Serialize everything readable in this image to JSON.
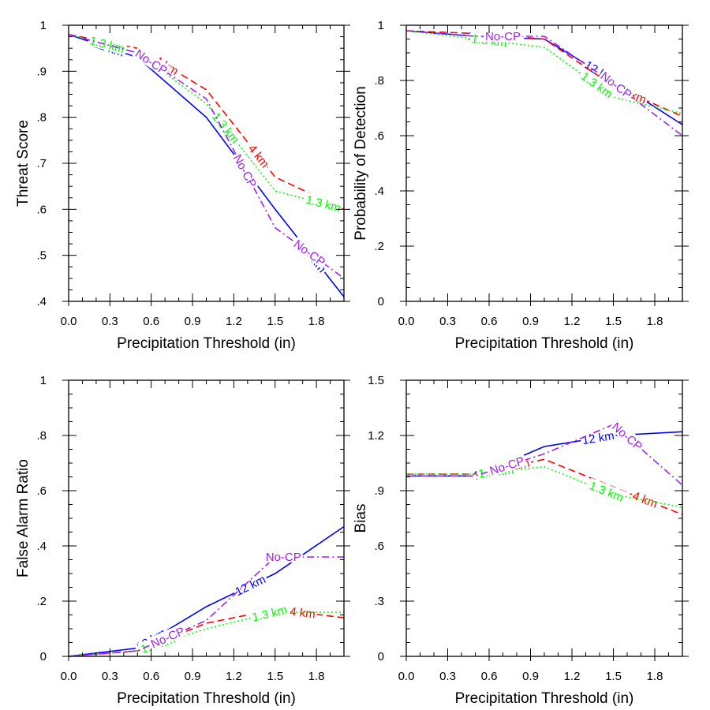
{
  "chart_data": [
    {
      "type": "line",
      "title": "",
      "xlabel": "Precipitation Threshold (in)",
      "ylabel": "Threat Score",
      "xlim": [
        0,
        2.0
      ],
      "ylim": [
        0.4,
        1.0
      ],
      "x_ticks": [
        "0.0",
        "0.3",
        "0.6",
        "0.9",
        "1.2",
        "1.5",
        "1.8"
      ],
      "x_tick_values": [
        0,
        0.3,
        0.6,
        0.9,
        1.2,
        1.5,
        1.8
      ],
      "y_ticks": [
        ".4",
        ".5",
        ".6",
        ".7",
        ".8",
        ".9",
        "1"
      ],
      "y_tick_values": [
        0.4,
        0.5,
        0.6,
        0.7,
        0.8,
        0.9,
        1.0
      ],
      "grid": false,
      "x": [
        0,
        0.5,
        1.0,
        1.5,
        2.0
      ],
      "series": [
        {
          "name": "12 km",
          "color": "#0000ff",
          "style": "solid",
          "values": [
            0.98,
            0.93,
            0.8,
            0.6,
            0.41
          ]
        },
        {
          "name": "4 km",
          "color": "#ff0000",
          "style": "dashed",
          "values": [
            0.98,
            0.95,
            0.86,
            0.67,
            0.6
          ]
        },
        {
          "name": "1.3 km",
          "color": "#00ff00",
          "style": "dotted",
          "values": [
            0.98,
            0.94,
            0.83,
            0.64,
            0.6
          ]
        },
        {
          "name": "No-CP",
          "color": "#a020f0",
          "style": "dashdot",
          "values": [
            0.98,
            0.94,
            0.84,
            0.56,
            0.45
          ]
        }
      ]
    },
    {
      "type": "line",
      "title": "",
      "xlabel": "Precipitation Threshold (in)",
      "ylabel": "Probability of Detection",
      "xlim": [
        0,
        2.0
      ],
      "ylim": [
        0,
        1.0
      ],
      "x_ticks": [
        "0.0",
        "0.3",
        "0.6",
        "0.9",
        "1.2",
        "1.5",
        "1.8"
      ],
      "x_tick_values": [
        0,
        0.3,
        0.6,
        0.9,
        1.2,
        1.5,
        1.8
      ],
      "y_ticks": [
        "0",
        ".2",
        ".4",
        ".6",
        ".8",
        "1"
      ],
      "y_tick_values": [
        0,
        0.2,
        0.4,
        0.6,
        0.8,
        1.0
      ],
      "grid": false,
      "x": [
        0,
        0.5,
        1.0,
        1.5,
        2.0
      ],
      "series": [
        {
          "name": "12 km",
          "color": "#0000ff",
          "style": "solid",
          "values": [
            0.98,
            0.96,
            0.95,
            0.8,
            0.64
          ]
        },
        {
          "name": "4 km",
          "color": "#ff0000",
          "style": "dashed",
          "values": [
            0.98,
            0.97,
            0.95,
            0.78,
            0.67
          ]
        },
        {
          "name": "1.3 km",
          "color": "#00ff00",
          "style": "dotted",
          "values": [
            0.98,
            0.95,
            0.92,
            0.74,
            0.68
          ]
        },
        {
          "name": "No-CP",
          "color": "#a020f0",
          "style": "dashdot",
          "values": [
            0.98,
            0.96,
            0.96,
            0.79,
            0.6
          ]
        }
      ]
    },
    {
      "type": "line",
      "title": "",
      "xlabel": "Precipitation Threshold (in)",
      "ylabel": "False Alarm Ratio",
      "xlim": [
        0,
        2.0
      ],
      "ylim": [
        0,
        1.0
      ],
      "x_ticks": [
        "0.0",
        "0.3",
        "0.6",
        "0.9",
        "1.2",
        "1.5",
        "1.8"
      ],
      "x_tick_values": [
        0,
        0.3,
        0.6,
        0.9,
        1.2,
        1.5,
        1.8
      ],
      "y_ticks": [
        "0",
        ".2",
        ".4",
        ".6",
        ".8",
        "1"
      ],
      "y_tick_values": [
        0,
        0.2,
        0.4,
        0.6,
        0.8,
        1.0
      ],
      "grid": false,
      "x": [
        0,
        0.5,
        1.0,
        1.5,
        2.0
      ],
      "series": [
        {
          "name": "12 km",
          "color": "#0000ff",
          "style": "solid",
          "values": [
            0.0,
            0.03,
            0.18,
            0.3,
            0.47
          ]
        },
        {
          "name": "4 km",
          "color": "#ff0000",
          "style": "dashed",
          "values": [
            0.0,
            0.02,
            0.12,
            0.17,
            0.14
          ]
        },
        {
          "name": "1.3 km",
          "color": "#00ff00",
          "style": "dotted",
          "values": [
            0.0,
            0.02,
            0.1,
            0.16,
            0.16
          ]
        },
        {
          "name": "No-CP",
          "color": "#a020f0",
          "style": "dashdot",
          "values": [
            0.0,
            0.02,
            0.13,
            0.36,
            0.36
          ]
        }
      ]
    },
    {
      "type": "line",
      "title": "",
      "xlabel": "Precipitation Threshold (in)",
      "ylabel": "Bias",
      "xlim": [
        0,
        2.0
      ],
      "ylim": [
        0,
        1.5
      ],
      "x_ticks": [
        "0.0",
        "0.3",
        "0.6",
        "0.9",
        "1.2",
        "1.5",
        "1.8"
      ],
      "x_tick_values": [
        0,
        0.3,
        0.6,
        0.9,
        1.2,
        1.5,
        1.8
      ],
      "y_ticks": [
        "0",
        ".3",
        ".6",
        ".9",
        "1.2",
        "1.5"
      ],
      "y_tick_values": [
        0,
        0.3,
        0.6,
        0.9,
        1.2,
        1.5
      ],
      "grid": false,
      "x": [
        0,
        0.5,
        1.0,
        1.5,
        2.0
      ],
      "series": [
        {
          "name": "12 km",
          "color": "#0000ff",
          "style": "solid",
          "values": [
            0.98,
            0.98,
            1.14,
            1.2,
            1.22
          ]
        },
        {
          "name": "4 km",
          "color": "#ff0000",
          "style": "dashed",
          "values": [
            0.99,
            0.99,
            1.07,
            0.92,
            0.77
          ]
        },
        {
          "name": "1.3 km",
          "color": "#00ff00",
          "style": "dotted",
          "values": [
            0.99,
            0.99,
            1.03,
            0.88,
            0.81
          ]
        },
        {
          "name": "No-CP",
          "color": "#a020f0",
          "style": "dashdot",
          "values": [
            0.98,
            0.98,
            1.1,
            1.26,
            0.93
          ]
        }
      ]
    }
  ]
}
